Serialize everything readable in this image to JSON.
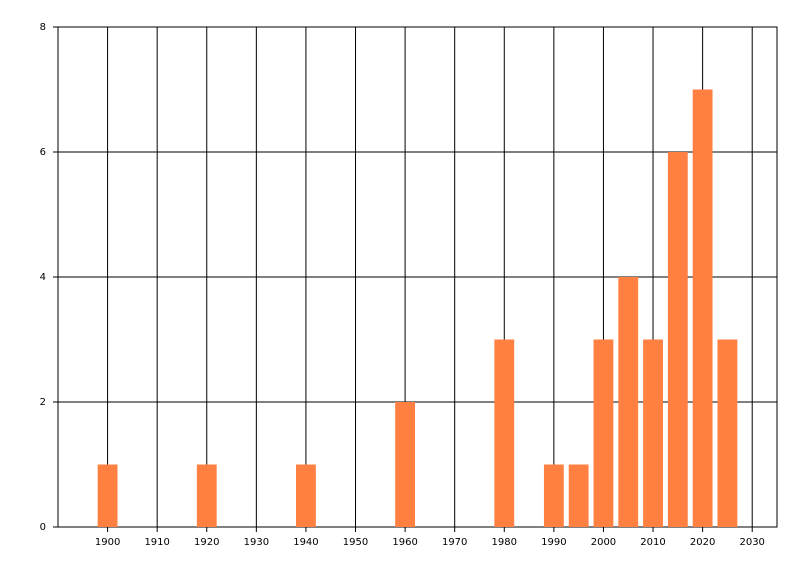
{
  "chart_data": {
    "type": "bar",
    "x": [
      1900,
      1920,
      1940,
      1960,
      1980,
      1990,
      1995,
      2000,
      2005,
      2010,
      2015,
      2020,
      2025
    ],
    "values": [
      1,
      1,
      1,
      2,
      3,
      1,
      1,
      3,
      4,
      3,
      6,
      7,
      3
    ],
    "color": "#ff8040",
    "xlim": [
      1890,
      2035
    ],
    "xticks": [
      1900,
      1910,
      1920,
      1930,
      1940,
      1950,
      1960,
      1970,
      1980,
      1990,
      2000,
      2010,
      2020,
      2030
    ],
    "ylim": [
      0,
      8
    ],
    "yticks": [
      0,
      2,
      4,
      6,
      8
    ],
    "grid": true
  }
}
